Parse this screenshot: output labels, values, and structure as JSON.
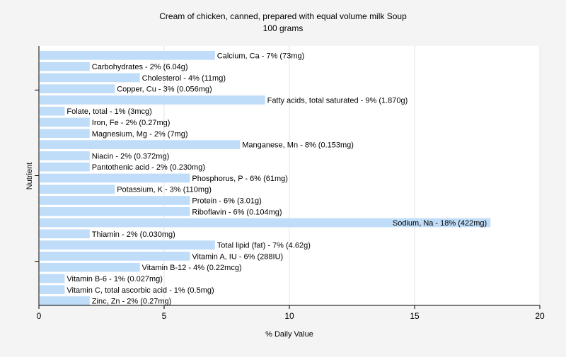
{
  "chart_data": {
    "type": "bar",
    "orientation": "horizontal",
    "title": "Cream of chicken, canned, prepared with equal volume milk Soup",
    "subtitle": "100 grams",
    "xlabel": "% Daily Value",
    "ylabel": "Nutrient",
    "xlim": [
      0,
      20
    ],
    "xticks": [
      0,
      5,
      10,
      15,
      20
    ],
    "grid": true,
    "bar_color": "#bfdcf8",
    "categories": [
      "Calcium, Ca",
      "Carbohydrates",
      "Cholesterol",
      "Copper, Cu",
      "Fatty acids, total saturated",
      "Folate, total",
      "Iron, Fe",
      "Magnesium, Mg",
      "Manganese, Mn",
      "Niacin",
      "Pantothenic acid",
      "Phosphorus, P",
      "Potassium, K",
      "Protein",
      "Riboflavin",
      "Sodium, Na",
      "Thiamin",
      "Total lipid (fat)",
      "Vitamin A, IU",
      "Vitamin B-12",
      "Vitamin B-6",
      "Vitamin C, total ascorbic acid",
      "Zinc, Zn"
    ],
    "values": [
      7,
      2,
      4,
      3,
      9,
      1,
      2,
      2,
      8,
      2,
      2,
      6,
      3,
      6,
      6,
      18,
      2,
      7,
      6,
      4,
      1,
      1,
      2
    ],
    "labels": [
      "Calcium, Ca - 7% (73mg)",
      "Carbohydrates - 2% (6.04g)",
      "Cholesterol - 4% (11mg)",
      "Copper, Cu - 3% (0.056mg)",
      "Fatty acids, total saturated - 9% (1.870g)",
      "Folate, total - 1% (3mcg)",
      "Iron, Fe - 2% (0.27mg)",
      "Magnesium, Mg - 2% (7mg)",
      "Manganese, Mn - 8% (0.153mg)",
      "Niacin - 2% (0.372mg)",
      "Pantothenic acid - 2% (0.230mg)",
      "Phosphorus, P - 6% (61mg)",
      "Potassium, K - 3% (110mg)",
      "Protein - 6% (3.01g)",
      "Riboflavin - 6% (0.104mg)",
      "Sodium, Na - 18% (422mg)",
      "Thiamin - 2% (0.030mg)",
      "Total lipid (fat) - 7% (4.62g)",
      "Vitamin A, IU - 6% (288IU)",
      "Vitamin B-12 - 4% (0.22mcg)",
      "Vitamin B-6 - 1% (0.027mg)",
      "Vitamin C, total ascorbic acid - 1% (0.5mg)",
      "Zinc, Zn - 2% (0.27mg)"
    ]
  }
}
